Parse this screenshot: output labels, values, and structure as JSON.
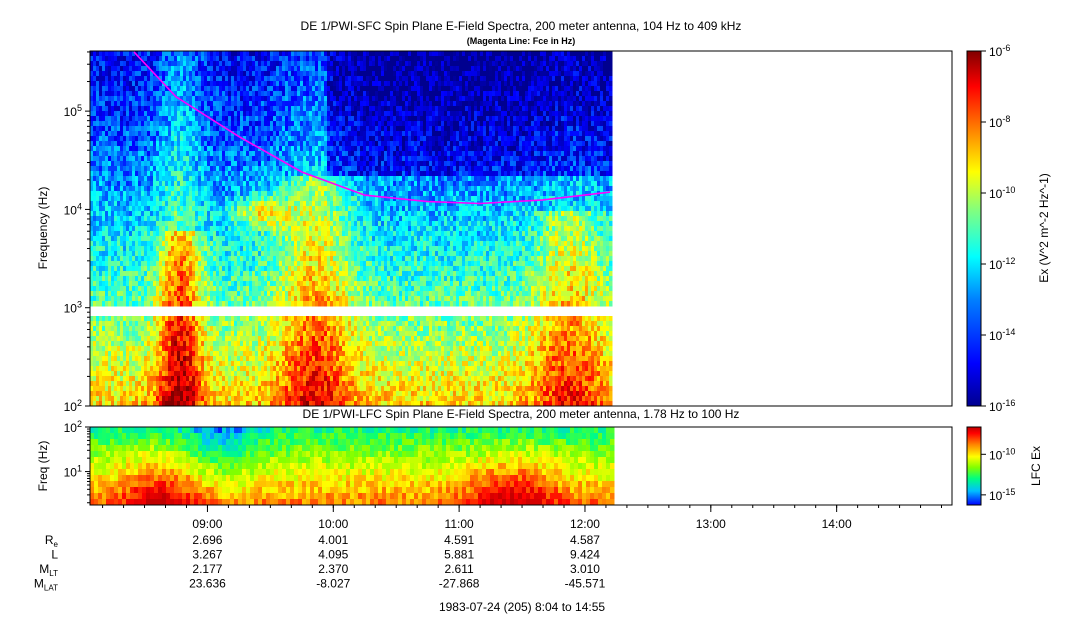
{
  "chart_data": [
    {
      "type": "heatmap",
      "title": "DE 1/PWI-SFC  Spin Plane E-Field Spectra, 200 meter antenna, 104 Hz to 409 kHz",
      "subtitle": "(Magenta Line: Fce in Hz)",
      "ylabel": "Frequency (Hz)",
      "yscale": "log",
      "ylim": [
        100,
        409000
      ],
      "ytick_labels": [
        "10^2",
        "10^3",
        "10^4",
        "10^5"
      ],
      "x_time_range": [
        "08:04",
        "14:55"
      ],
      "data_coverage_end": "12:12",
      "gap_band_hz": [
        900,
        1000
      ],
      "colorbar": {
        "label": "Ex (V^2 m^-2 Hz^-1)",
        "scale": "log",
        "range": [
          1e-16,
          1e-06
        ],
        "tick_labels": [
          "10^-6",
          "10^-8",
          "10^-10",
          "10^-12",
          "10^-14",
          "10^-16"
        ],
        "colormap": [
          "#00008f",
          "#0000ff",
          "#0080ff",
          "#00ffff",
          "#80ff80",
          "#ffff00",
          "#ff8000",
          "#ff0000",
          "#800000"
        ]
      },
      "series": [
        {
          "name": "Fce",
          "color": "#ff00ff",
          "x": [
            "08:25",
            "08:45",
            "09:15",
            "09:45",
            "10:15",
            "10:45",
            "11:10",
            "11:40",
            "12:12"
          ],
          "y": [
            400000,
            140000,
            55000,
            24000,
            14000,
            12000,
            11500,
            12500,
            15000
          ]
        }
      ]
    },
    {
      "type": "heatmap",
      "title": "DE 1/PWI-LFC  Spin Plane E-Field Spectra, 200 meter antenna, 1.78 Hz to 100 Hz",
      "ylabel": "Freq (Hz)",
      "yscale": "log",
      "ylim": [
        1.78,
        100
      ],
      "ytick_labels": [
        "10^1",
        "10^2"
      ],
      "x_time_range": [
        "08:04",
        "14:55"
      ],
      "data_coverage_end": "12:12",
      "colorbar": {
        "label": "LFC Ex",
        "scale": "log",
        "tick_labels": [
          "10^-10",
          "10^-15"
        ],
        "colormap": [
          "#0000ff",
          "#00c0ff",
          "#00ff80",
          "#80ff00",
          "#ffff00",
          "#ff8000",
          "#ff0000",
          "#c00000"
        ]
      }
    }
  ],
  "xaxis": {
    "tick_labels": [
      "09:00",
      "10:00",
      "11:00",
      "12:00",
      "13:00",
      "14:00"
    ]
  },
  "ephemeris": {
    "rows": [
      {
        "label": "R",
        "sub": "e",
        "values": [
          "2.696",
          "4.001",
          "4.591",
          "4.587"
        ]
      },
      {
        "label": "L",
        "sub": "",
        "values": [
          "3.267",
          "4.095",
          "5.881",
          "9.424"
        ]
      },
      {
        "label": "M",
        "sub": "LT",
        "values": [
          "2.177",
          "2.370",
          "2.611",
          "3.010"
        ]
      },
      {
        "label": "M",
        "sub": "LAT",
        "values": [
          "23.636",
          "-8.027",
          "-27.868",
          "-45.571"
        ]
      }
    ]
  },
  "footer": "1983-07-24 (205) 8:04 to 14:55"
}
